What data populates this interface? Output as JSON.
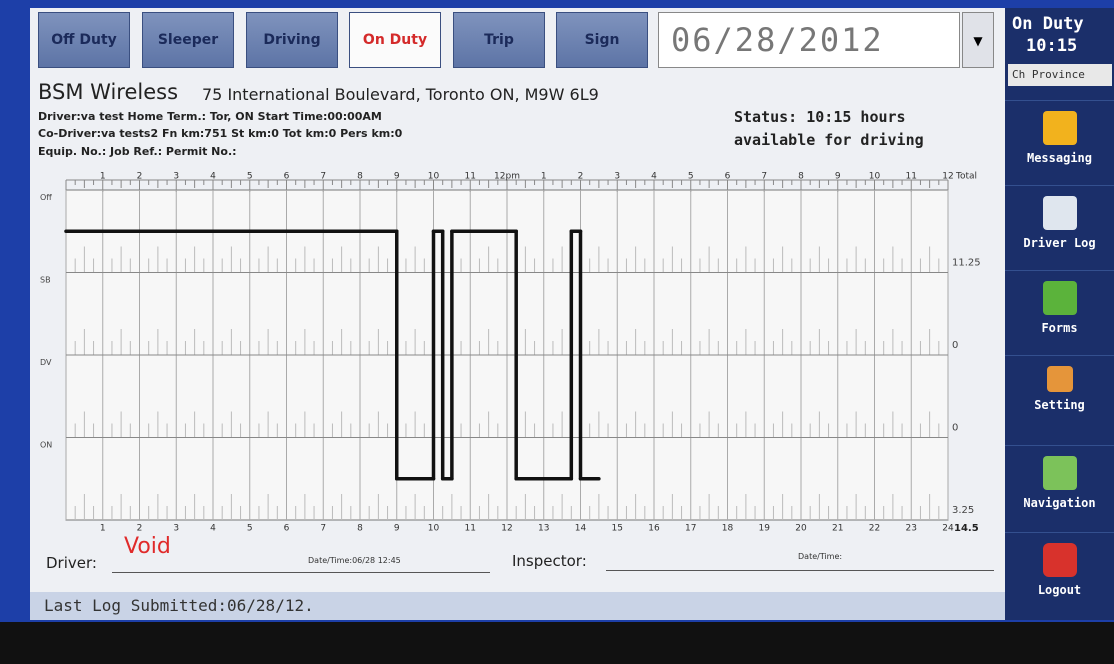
{
  "tabs": [
    "Off Duty",
    "Sleeper",
    "Driving",
    "On Duty",
    "Trip",
    "Sign"
  ],
  "date": "06/28/2012",
  "side": {
    "status": "On Duty",
    "time": "10:15",
    "province": "Ch Province",
    "items": [
      "Messaging",
      "Driver Log",
      "Forms",
      "Setting",
      "Navigation",
      "Logout"
    ]
  },
  "header": {
    "company": "BSM Wireless",
    "address": "75 International Boulevard, Toronto ON, M9W 6L9",
    "lines": [
      "Driver:va test Home Term.: Tor, ON  Start Time:00:00AM",
      "Co-Driver:va tests2  Fn km:751 St km:0 Tot km:0 Pers km:0",
      "Equip. No.: Job Ref.: Permit No.:"
    ],
    "status": [
      "Status: 10:15 hours",
      "available for driving"
    ]
  },
  "log": {
    "rows": [
      "Off",
      "SB",
      "DV",
      "ON"
    ],
    "top_labels": [
      "1",
      "2",
      "3",
      "4",
      "5",
      "6",
      "7",
      "8",
      "9",
      "10",
      "11",
      "12pm",
      "1",
      "2",
      "3",
      "4",
      "5",
      "6",
      "7",
      "8",
      "9",
      "10",
      "11",
      "12"
    ],
    "total_label": "Total",
    "bottom_labels": [
      "1",
      "2",
      "3",
      "4",
      "5",
      "6",
      "7",
      "8",
      "9",
      "10",
      "11",
      "12",
      "13",
      "14",
      "15",
      "16",
      "17",
      "18",
      "19",
      "20",
      "21",
      "22",
      "23",
      "24"
    ],
    "totals": [
      "11.25",
      "0",
      "0",
      "3.25"
    ],
    "total_sum": "14.5",
    "events": [
      {
        "hour": 0,
        "status": 0
      },
      {
        "hour": 9,
        "status": 3
      },
      {
        "hour": 10,
        "status": 0
      },
      {
        "hour": 10.25,
        "status": 3
      },
      {
        "hour": 10.5,
        "status": 0
      },
      {
        "hour": 12.25,
        "status": 3
      },
      {
        "hour": 13.75,
        "status": 0
      },
      {
        "hour": 14,
        "status": 3
      }
    ],
    "end": 14.5
  },
  "signature": {
    "driver": "Driver:",
    "void": "Void",
    "driver_date": "Date/Time:06/28 12:45",
    "inspector": "Inspector:",
    "inspector_date": "Date/Time:"
  },
  "footer": "Last Log Submitted:06/28/12."
}
